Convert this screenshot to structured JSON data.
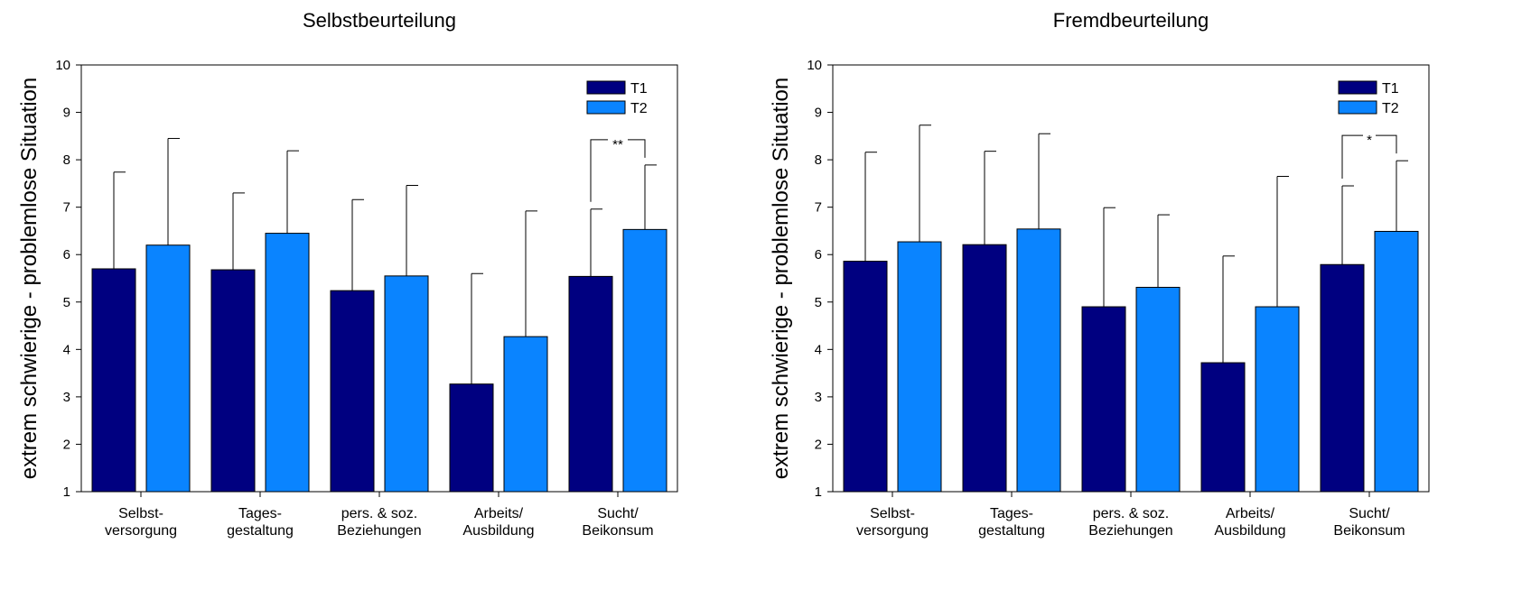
{
  "chart_data": [
    {
      "type": "bar",
      "title": "Selbstbeurteilung",
      "ylabel": "extrem schwierige - problemlose Situation",
      "xlabel": "",
      "ylim": [
        1,
        10
      ],
      "yticks": [
        "1",
        "2",
        "3",
        "4",
        "5",
        "6",
        "7",
        "8",
        "9",
        "10"
      ],
      "categories": [
        [
          "Selbst-",
          "versorgung"
        ],
        [
          "Tages-",
          "gestaltung"
        ],
        [
          "pers. & soz.",
          "Beziehungen"
        ],
        [
          "Arbeits/",
          "Ausbildung"
        ],
        [
          "Sucht/",
          "Beikonsum"
        ]
      ],
      "series": [
        {
          "name": "T1",
          "color": "#000080",
          "values": [
            5.7,
            5.68,
            5.24,
            3.27,
            5.54
          ],
          "error_upper": [
            7.74,
            7.3,
            7.16,
            5.6,
            6.96
          ]
        },
        {
          "name": "T2",
          "color": "#0a84ff",
          "values": [
            6.2,
            6.45,
            5.55,
            4.27,
            6.53
          ],
          "error_upper": [
            8.45,
            8.19,
            7.46,
            6.92,
            7.89
          ]
        }
      ],
      "legend_position": "top-right",
      "significance": {
        "category_index": 4,
        "label": "**"
      }
    },
    {
      "type": "bar",
      "title": "Fremdbeurteilung",
      "ylabel": "extrem schwierige - problemlose Situation",
      "xlabel": "",
      "ylim": [
        1,
        10
      ],
      "yticks": [
        "1",
        "2",
        "3",
        "4",
        "5",
        "6",
        "7",
        "8",
        "9",
        "10"
      ],
      "categories": [
        [
          "Selbst-",
          "versorgung"
        ],
        [
          "Tages-",
          "gestaltung"
        ],
        [
          "pers. & soz.",
          "Beziehungen"
        ],
        [
          "Arbeits/",
          "Ausbildung"
        ],
        [
          "Sucht/",
          "Beikonsum"
        ]
      ],
      "series": [
        {
          "name": "T1",
          "color": "#000080",
          "values": [
            5.86,
            6.21,
            4.9,
            3.72,
            5.79
          ],
          "error_upper": [
            8.16,
            8.18,
            6.99,
            5.97,
            7.45
          ]
        },
        {
          "name": "T2",
          "color": "#0a84ff",
          "values": [
            6.27,
            6.54,
            5.31,
            4.9,
            6.49
          ],
          "error_upper": [
            8.73,
            8.55,
            6.84,
            7.65,
            7.98
          ]
        }
      ],
      "legend_position": "top-right",
      "significance": {
        "category_index": 4,
        "label": "*"
      }
    }
  ]
}
